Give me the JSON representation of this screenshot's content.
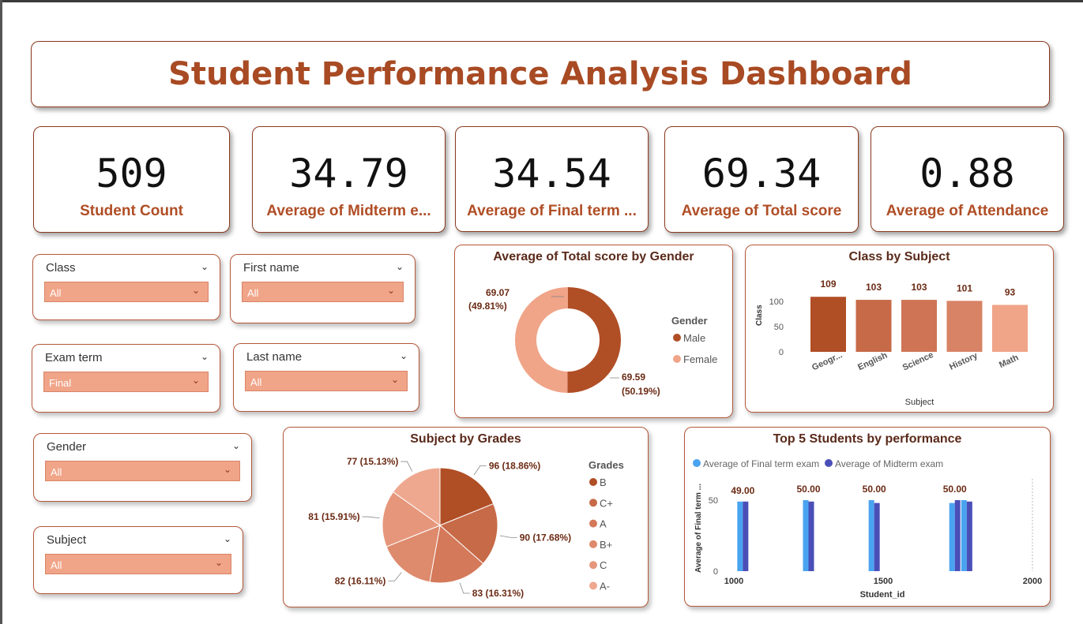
{
  "title": "Student Performance Analysis Dashboard",
  "kpis": [
    {
      "value": "509",
      "label": "Student Count"
    },
    {
      "value": "34.79",
      "label": "Average of Midterm e..."
    },
    {
      "value": "34.54",
      "label": "Average of Final term ..."
    },
    {
      "value": "69.34",
      "label": "Average of Total score"
    },
    {
      "value": "0.88",
      "label": "Average of Attendance"
    }
  ],
  "slicers": {
    "class": {
      "label": "Class",
      "value": "All"
    },
    "first_name": {
      "label": "First name",
      "value": "All"
    },
    "exam_term": {
      "label": "Exam term",
      "value": "Final"
    },
    "last_name": {
      "label": "Last name",
      "value": "All"
    },
    "gender": {
      "label": "Gender",
      "value": "All"
    },
    "subject": {
      "label": "Subject",
      "value": "All"
    }
  },
  "colors": {
    "accent": "#a84a23",
    "border": "#8a3a1f",
    "slicer_fill": "#f0a488",
    "male": "#b04e26",
    "female": "#f0a488",
    "final_term": "#4aa3f0",
    "midterm": "#4a4fb8"
  },
  "chart_data": [
    {
      "type": "pie",
      "title": "Average of Total score by Gender",
      "legend_title": "Gender",
      "legend_position": "right",
      "donut": true,
      "slices": [
        {
          "name": "Male",
          "value": 69.59,
          "label": "69.59",
          "pct": "(50.19%)",
          "color": "#b04e26"
        },
        {
          "name": "Female",
          "value": 69.07,
          "label": "69.07",
          "pct": "(49.81%)",
          "color": "#f0a488"
        }
      ]
    },
    {
      "type": "bar",
      "title": "Class by Subject",
      "xlabel": "Subject",
      "ylabel": "Class",
      "ylim": [
        0,
        120
      ],
      "yticks": [
        0,
        50,
        100
      ],
      "categories": [
        "Geogr...",
        "English",
        "Science",
        "History",
        "Math"
      ],
      "values": [
        109,
        103,
        103,
        101,
        93
      ],
      "colors": [
        "#b04e26",
        "#c76a48",
        "#cf7555",
        "#d88366",
        "#f0a488"
      ]
    },
    {
      "type": "pie",
      "title": "Subject by Grades",
      "legend_title": "Grades",
      "legend_position": "right",
      "slices": [
        {
          "name": "B",
          "value": 96,
          "label": "96 (18.86%)",
          "color": "#b04e26"
        },
        {
          "name": "C+",
          "value": 90,
          "label": "90 (17.68%)",
          "color": "#c76a48"
        },
        {
          "name": "A",
          "value": 83,
          "label": "83 (16.31%)",
          "color": "#d4795a"
        },
        {
          "name": "B+",
          "value": 82,
          "label": "82 (16.11%)",
          "color": "#de8a6c"
        },
        {
          "name": "C",
          "value": 81,
          "label": "81 (15.91%)",
          "color": "#e6977b"
        },
        {
          "name": "A-",
          "value": 77,
          "label": "77 (15.13%)",
          "color": "#eea88f"
        }
      ]
    },
    {
      "type": "bar",
      "title": "Top 5 Students by performance",
      "xlabel": "Student_id",
      "ylabel": "Average of Final term ...",
      "legend_position": "top-left",
      "xlim": [
        1000,
        2000
      ],
      "xticks": [
        1000,
        1500,
        2000
      ],
      "ylim": [
        0,
        60
      ],
      "yticks": [
        0,
        50
      ],
      "series": [
        {
          "name": "Average of Final term exam",
          "color": "#4aa3f0"
        },
        {
          "name": "Average of Midterm exam",
          "color": "#4a4fb8"
        }
      ],
      "groups": [
        {
          "x": 1030,
          "label": "49.00",
          "final": 49,
          "mid": 49
        },
        {
          "x": 1250,
          "label": "50.00",
          "final": 50,
          "mid": 49
        },
        {
          "x": 1470,
          "label": "50.00",
          "final": 50,
          "mid": 48
        },
        {
          "x": 1740,
          "label": "50.00",
          "final": 48,
          "mid": 50
        },
        {
          "x": 1780,
          "final": 50,
          "mid": 49
        }
      ]
    }
  ]
}
